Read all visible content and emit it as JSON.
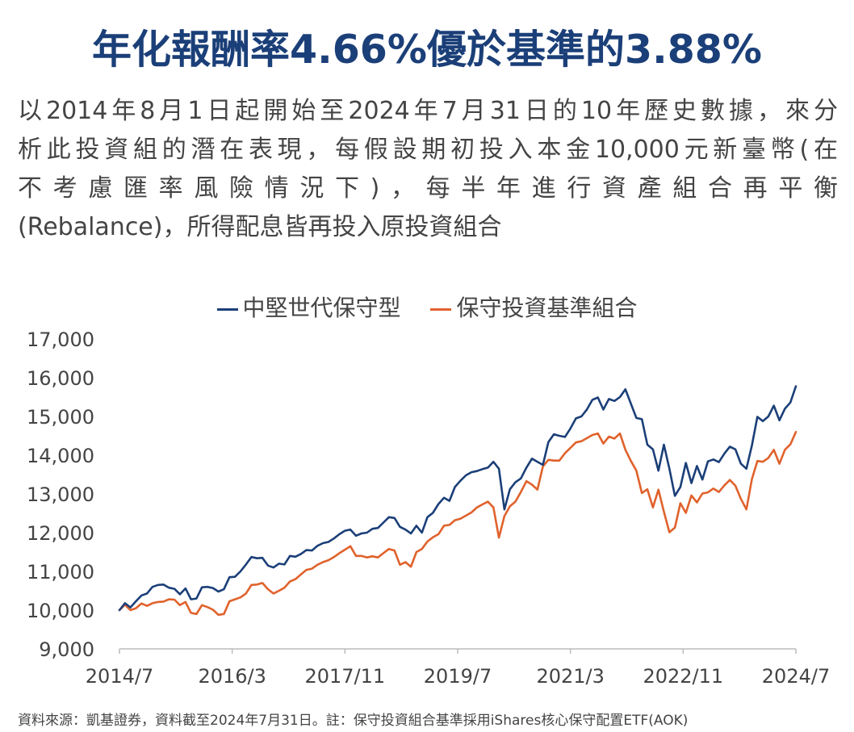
{
  "headline": "年化報酬率4.66%優於基準的3.88%",
  "intro_lines": [
    "以2014年8月1日起開始至2024年7月31日的10年歷史數據，來分",
    "析此投資組的潛在表現，每假設期初投入本金10,000元新臺幣(在",
    "不考慮匯率風險情況下)，每半年進行資產組合再平衡",
    "(Rebalance)，所得配息皆再投入原投資組合"
  ],
  "source_note": "資料來源：凱基證券，資料截至2024年7月31日。註：保守投資組合基準採用iShares核心保守配置ETF(AOK)",
  "colors": {
    "series_a": "#1b3f78",
    "series_b": "#e0622c",
    "axis": "#bbbbbb",
    "text": "#444444"
  },
  "chart_data": {
    "type": "line",
    "legend_placement": "top-center",
    "grid": false,
    "ylim": [
      9000,
      17000
    ],
    "y_ticks": [
      "9,000",
      "10,000",
      "11,000",
      "12,000",
      "13,000",
      "14,000",
      "15,000",
      "16,000",
      "17,000"
    ],
    "y_tick_values": [
      9000,
      10000,
      11000,
      12000,
      13000,
      14000,
      15000,
      16000,
      17000
    ],
    "x_tick_labels": [
      "2014/7",
      "2016/3",
      "2017/11",
      "2019/7",
      "2021/3",
      "2022/11",
      "2024/7"
    ],
    "x_tick_dates": [
      "2014-07",
      "2016-03",
      "2017-11",
      "2019-07",
      "2021-03",
      "2022-11",
      "2024-07"
    ],
    "x_start": "2014-07",
    "x_end": "2024-07",
    "series": [
      {
        "name": "中堅世代保守型",
        "values": [
          10000,
          10180,
          10070,
          10230,
          10380,
          10430,
          10600,
          10650,
          10660,
          10580,
          10550,
          10410,
          10560,
          10280,
          10300,
          10590,
          10600,
          10570,
          10480,
          10540,
          10850,
          10860,
          11000,
          11180,
          11370,
          11340,
          11350,
          11150,
          11100,
          11200,
          11180,
          11400,
          11380,
          11450,
          11550,
          11540,
          11660,
          11730,
          11760,
          11850,
          11960,
          12050,
          12080,
          11920,
          11980,
          12000,
          12100,
          12120,
          12260,
          12400,
          12380,
          12150,
          12080,
          11980,
          12180,
          12000,
          12400,
          12510,
          12740,
          12900,
          12820,
          13180,
          13340,
          13480,
          13560,
          13590,
          13640,
          13680,
          13830,
          13650,
          12600,
          13120,
          13300,
          13400,
          13680,
          13910,
          13830,
          13750,
          14340,
          14540,
          14500,
          14470,
          14690,
          14950,
          15000,
          15180,
          15430,
          15490,
          15180,
          15450,
          15400,
          15500,
          15700,
          15330,
          14960,
          14930,
          14270,
          14150,
          13600,
          14270,
          13650,
          12950,
          13180,
          13800,
          13280,
          13720,
          13370,
          13840,
          13890,
          13820,
          14040,
          14220,
          14150,
          13780,
          13650,
          14250,
          14990,
          14880,
          15000,
          15280,
          14900,
          15200,
          15360,
          15780
        ]
      },
      {
        "name": "保守投資基準組合",
        "values": [
          10000,
          10140,
          10000,
          10050,
          10170,
          10110,
          10180,
          10210,
          10220,
          10280,
          10270,
          10130,
          10210,
          9930,
          9900,
          10130,
          10080,
          10010,
          9880,
          9900,
          10230,
          10280,
          10330,
          10430,
          10650,
          10660,
          10700,
          10540,
          10430,
          10500,
          10580,
          10740,
          10800,
          10920,
          11040,
          11070,
          11170,
          11240,
          11290,
          11370,
          11470,
          11560,
          11650,
          11400,
          11400,
          11360,
          11390,
          11360,
          11470,
          11580,
          11540,
          11170,
          11240,
          11120,
          11500,
          11580,
          11770,
          11880,
          11960,
          12180,
          12200,
          12320,
          12360,
          12440,
          12520,
          12650,
          12730,
          12800,
          12650,
          11870,
          12430,
          12680,
          12800,
          13050,
          13330,
          13240,
          13110,
          13710,
          13880,
          13860,
          13860,
          14050,
          14190,
          14330,
          14360,
          14440,
          14520,
          14560,
          14300,
          14480,
          14430,
          14560,
          14140,
          13850,
          13600,
          13020,
          13120,
          12650,
          13110,
          12540,
          12010,
          12130,
          12760,
          12510,
          12960,
          12780,
          13010,
          13040,
          13140,
          13050,
          13220,
          13360,
          13210,
          12870,
          12600,
          13380,
          13850,
          13830,
          13930,
          14140,
          13780,
          14140,
          14280,
          14600
        ]
      }
    ]
  }
}
